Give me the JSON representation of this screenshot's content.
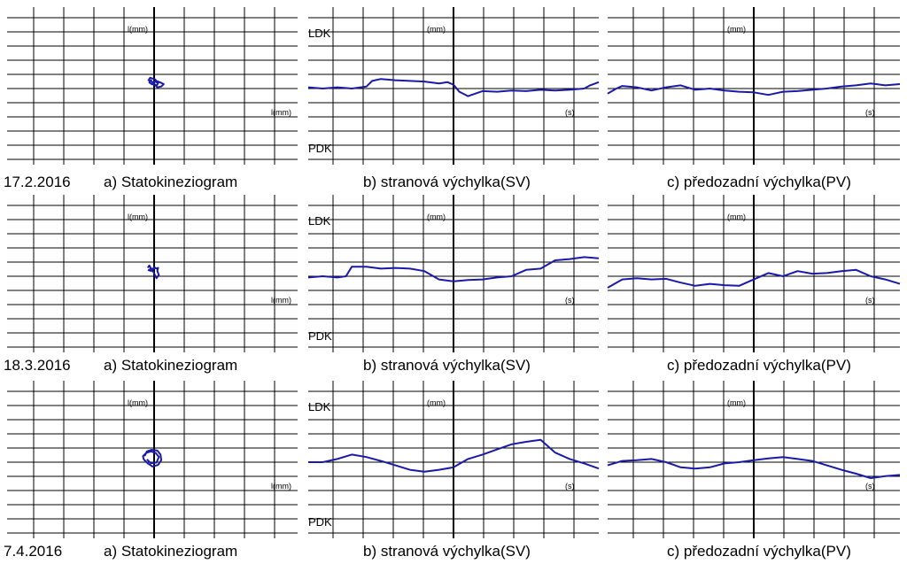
{
  "colors": {
    "trace": "#1a1aa8",
    "grid": "#000000",
    "background": "#ffffff"
  },
  "chart_data": [
    {
      "type": "scatter",
      "panel": "statokineziogram",
      "row": 0,
      "date": "17.2.2016",
      "caption": "a) Statokineziogram",
      "y_axis_label": "l(mm)",
      "x_axis_label": "l(mm)",
      "grid": true,
      "xlim": [
        -1,
        1
      ],
      "ylim": [
        -1,
        1
      ],
      "trace": [
        [
          -0.04,
          0.03
        ],
        [
          -0.07,
          0.05
        ],
        [
          -0.05,
          0.08
        ],
        [
          -0.02,
          0.07
        ],
        [
          0.01,
          0.06
        ],
        [
          0.03,
          0.04
        ],
        [
          0.08,
          0.02
        ],
        [
          0.12,
          0.0
        ],
        [
          0.09,
          -0.03
        ],
        [
          0.04,
          -0.04
        ],
        [
          0.01,
          -0.01
        ],
        [
          -0.03,
          0.0
        ],
        [
          -0.06,
          0.02
        ],
        [
          -0.04,
          0.05
        ],
        [
          -0.02,
          0.02
        ],
        [
          0.02,
          0.03
        ],
        [
          0.05,
          0.01
        ],
        [
          0.03,
          -0.02
        ],
        [
          -0.01,
          0.01
        ]
      ]
    },
    {
      "type": "line",
      "panel": "lateral",
      "row": 0,
      "caption": "b) stranová výchylka(SV)",
      "top_label": "LDK",
      "bottom_label": "PDK",
      "y_axis_label": "(mm)",
      "x_axis_label": "(s)",
      "grid": true,
      "xlim": [
        0,
        1
      ],
      "ylim": [
        -1,
        1
      ],
      "x": [
        0,
        0.05,
        0.1,
        0.15,
        0.2,
        0.22,
        0.25,
        0.3,
        0.35,
        0.4,
        0.45,
        0.48,
        0.5,
        0.52,
        0.55,
        0.6,
        0.65,
        0.7,
        0.75,
        0.8,
        0.85,
        0.9,
        0.95,
        0.97,
        1.0
      ],
      "y": [
        0.02,
        0.0,
        0.02,
        0.0,
        0.03,
        0.12,
        0.15,
        0.13,
        0.12,
        0.11,
        0.08,
        0.1,
        0.06,
        -0.05,
        -0.12,
        -0.04,
        -0.05,
        -0.03,
        -0.04,
        -0.02,
        -0.03,
        -0.02,
        0.0,
        0.05,
        0.1
      ]
    },
    {
      "type": "line",
      "panel": "anteroposterior",
      "row": 0,
      "caption": "c) předozadní výchylka(PV)",
      "y_axis_label": "(mm)",
      "x_axis_label": "(s)",
      "grid": true,
      "xlim": [
        0,
        1
      ],
      "ylim": [
        -1,
        1
      ],
      "x": [
        0,
        0.03,
        0.05,
        0.1,
        0.15,
        0.2,
        0.25,
        0.3,
        0.35,
        0.4,
        0.45,
        0.5,
        0.55,
        0.6,
        0.65,
        0.7,
        0.75,
        0.8,
        0.85,
        0.9,
        0.95,
        1.0
      ],
      "y": [
        -0.08,
        0.0,
        0.04,
        0.02,
        -0.03,
        0.02,
        0.05,
        -0.02,
        0.0,
        -0.03,
        -0.05,
        -0.06,
        -0.1,
        -0.05,
        -0.04,
        -0.02,
        0.0,
        0.03,
        0.05,
        0.08,
        0.05,
        0.07
      ]
    },
    {
      "type": "scatter",
      "panel": "statokineziogram",
      "row": 1,
      "date": "18.3.2016",
      "caption": "a) Statokineziogram",
      "y_axis_label": "l(mm)",
      "x_axis_label": "l(mm)",
      "grid": true,
      "xlim": [
        -1,
        1
      ],
      "ylim": [
        -1,
        1
      ],
      "trace": [
        [
          -0.08,
          0.05
        ],
        [
          -0.06,
          0.08
        ],
        [
          -0.04,
          0.04
        ],
        [
          -0.07,
          0.02
        ],
        [
          -0.03,
          0.01
        ],
        [
          0.0,
          0.06
        ],
        [
          0.03,
          0.04
        ],
        [
          0.05,
          0.05
        ],
        [
          0.04,
          0.01
        ],
        [
          0.06,
          -0.04
        ],
        [
          0.03,
          -0.08
        ],
        [
          0.01,
          -0.04
        ],
        [
          -0.02,
          0.02
        ],
        [
          -0.05,
          0.06
        ],
        [
          -0.03,
          0.03
        ],
        [
          0.02,
          0.05
        ]
      ]
    },
    {
      "type": "line",
      "panel": "lateral",
      "row": 1,
      "caption": "b) stranová výchylka(SV)",
      "top_label": "LDK",
      "bottom_label": "PDK",
      "y_axis_label": "(mm)",
      "x_axis_label": "(s)",
      "grid": true,
      "xlim": [
        0,
        1
      ],
      "ylim": [
        -1,
        1
      ],
      "x": [
        0,
        0.05,
        0.1,
        0.13,
        0.15,
        0.2,
        0.25,
        0.3,
        0.35,
        0.4,
        0.45,
        0.5,
        0.55,
        0.6,
        0.65,
        0.7,
        0.75,
        0.8,
        0.85,
        0.9,
        0.95,
        1.0
      ],
      "y": [
        -0.02,
        0.0,
        -0.02,
        0.0,
        0.15,
        0.15,
        0.12,
        0.13,
        0.12,
        0.08,
        -0.05,
        -0.08,
        -0.06,
        -0.05,
        -0.02,
        0.0,
        0.1,
        0.12,
        0.25,
        0.27,
        0.3,
        0.28
      ]
    },
    {
      "type": "line",
      "panel": "anteroposterior",
      "row": 1,
      "caption": "c) předozadní výchylka(PV)",
      "y_axis_label": "(mm)",
      "x_axis_label": "(s)",
      "grid": true,
      "xlim": [
        0,
        1
      ],
      "ylim": [
        -1,
        1
      ],
      "x": [
        0,
        0.05,
        0.1,
        0.15,
        0.2,
        0.25,
        0.3,
        0.35,
        0.4,
        0.45,
        0.5,
        0.55,
        0.6,
        0.65,
        0.7,
        0.75,
        0.8,
        0.85,
        0.9,
        0.95,
        1.0
      ],
      "y": [
        -0.18,
        -0.05,
        -0.03,
        -0.05,
        -0.04,
        -0.1,
        -0.15,
        -0.12,
        -0.14,
        -0.15,
        -0.05,
        0.05,
        0.0,
        0.08,
        0.04,
        0.05,
        0.08,
        0.1,
        0.0,
        -0.05,
        -0.12
      ]
    },
    {
      "type": "scatter",
      "panel": "statokineziogram",
      "row": 2,
      "date": "7.4.2016",
      "caption": "a) Statokineziogram",
      "y_axis_label": "l(mm)",
      "x_axis_label": "l(mm)",
      "grid": true,
      "xlim": [
        -1,
        1
      ],
      "ylim": [
        -1,
        1
      ],
      "trace": [
        [
          -0.12,
          0.02
        ],
        [
          -0.09,
          0.08
        ],
        [
          -0.03,
          0.1
        ],
        [
          0.04,
          0.09
        ],
        [
          0.08,
          0.04
        ],
        [
          0.09,
          -0.03
        ],
        [
          0.05,
          -0.09
        ],
        [
          -0.02,
          -0.11
        ],
        [
          -0.08,
          -0.07
        ],
        [
          -0.13,
          -0.02
        ],
        [
          -0.14,
          0.02
        ],
        [
          -0.1,
          0.06
        ],
        [
          -0.04,
          0.08
        ],
        [
          0.02,
          0.06
        ],
        [
          0.06,
          0.01
        ],
        [
          0.03,
          -0.06
        ],
        [
          -0.04,
          -0.07
        ],
        [
          -0.09,
          -0.02
        ]
      ]
    },
    {
      "type": "line",
      "panel": "lateral",
      "row": 2,
      "caption": "b) stranová výchylka(SV)",
      "top_label": "LDK",
      "bottom_label": "PDK",
      "y_axis_label": "(mm)",
      "x_axis_label": "(s)",
      "grid": true,
      "xlim": [
        0,
        1
      ],
      "ylim": [
        -1,
        1
      ],
      "x": [
        0,
        0.05,
        0.1,
        0.15,
        0.2,
        0.25,
        0.3,
        0.35,
        0.4,
        0.45,
        0.5,
        0.55,
        0.6,
        0.65,
        0.7,
        0.75,
        0.8,
        0.85,
        0.9,
        0.95,
        1.0
      ],
      "y": [
        0.0,
        0.0,
        0.05,
        0.12,
        0.08,
        0.02,
        -0.05,
        -0.12,
        -0.15,
        -0.12,
        -0.08,
        0.05,
        0.12,
        0.2,
        0.28,
        0.32,
        0.35,
        0.15,
        0.05,
        -0.02,
        -0.1
      ]
    },
    {
      "type": "line",
      "panel": "anteroposterior",
      "row": 2,
      "caption": "c) předozadní výchylka(PV)",
      "y_axis_label": "(mm)",
      "x_axis_label": "(s)",
      "grid": true,
      "xlim": [
        0,
        1
      ],
      "ylim": [
        -1,
        1
      ],
      "x": [
        0,
        0.05,
        0.1,
        0.15,
        0.2,
        0.25,
        0.3,
        0.35,
        0.4,
        0.45,
        0.5,
        0.55,
        0.6,
        0.65,
        0.7,
        0.75,
        0.8,
        0.85,
        0.9,
        0.95,
        1.0
      ],
      "y": [
        -0.05,
        0.02,
        0.03,
        0.05,
        0.0,
        -0.08,
        -0.1,
        -0.08,
        -0.02,
        0.0,
        0.03,
        0.06,
        0.08,
        0.05,
        0.02,
        -0.05,
        -0.12,
        -0.18,
        -0.25,
        -0.22,
        -0.2
      ]
    }
  ]
}
